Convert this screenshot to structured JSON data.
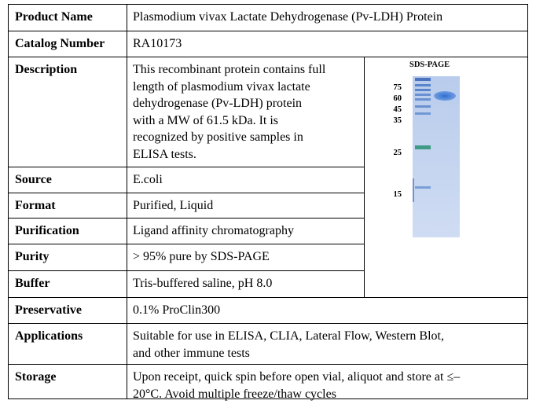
{
  "rows": [
    {
      "label": "Product Name",
      "value": "Plasmodium vivax Lactate Dehydrogenase (Pv-LDH) Protein"
    },
    {
      "label": "Catalog Number",
      "value": "RA10173"
    },
    {
      "label": "Description",
      "value_lines": [
        "This recombinant protein contains full",
        "length of plasmodium vivax lactate",
        "dehydrogenase (Pv-LDH) protein",
        "with a MW of 61.5 kDa. It is",
        "recognized by positive samples in",
        "ELISA tests."
      ]
    },
    {
      "label": "Source",
      "value": "E.coli"
    },
    {
      "label": "Format",
      "value": "Purified, Liquid"
    },
    {
      "label": "Purification",
      "value": "Ligand affinity chromatography"
    },
    {
      "label": "Purity",
      "value": "> 95% pure by SDS-PAGE"
    },
    {
      "label": "Buffer",
      "value": "Tris-buffered saline, pH 8.0"
    },
    {
      "label": "Preservative",
      "value": "0.1% ProClin300"
    },
    {
      "label": "Applications",
      "value_lines": [
        "Suitable for use in ELISA, CLIA, Lateral Flow, Western Blot,",
        "and other immune tests"
      ]
    },
    {
      "label": "Storage",
      "value_lines": [
        "Upon receipt, quick spin before open vial, aliquot and store at ≤–",
        "20°C. Avoid multiple freeze/thaw cycles"
      ]
    }
  ],
  "gel": {
    "title": "SDS-PAGE",
    "markers": [
      "75",
      "60",
      "45",
      "35",
      "25",
      "15"
    ],
    "colors": {
      "gel_bg": "#c9d9f2",
      "band_blue": "#3f7fd6",
      "band_green": "#3f9a86"
    }
  }
}
